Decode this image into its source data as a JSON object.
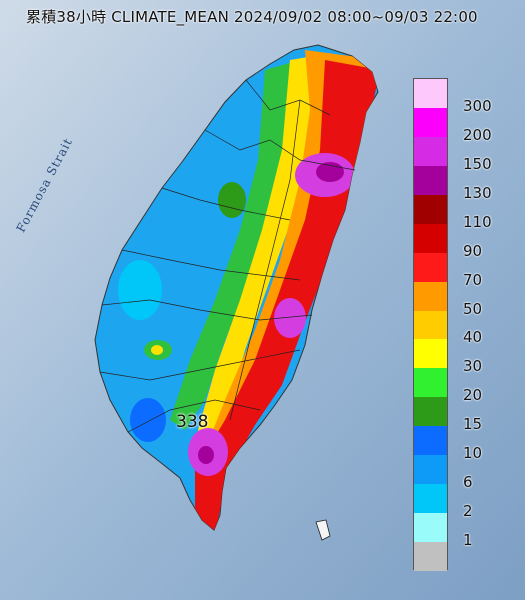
{
  "title": "累積38小時 CLIMATE_MEAN 2024/09/02 08:00~09/03 22:00",
  "strait_label": "Formosa Strait",
  "max_value": "338",
  "legend": {
    "colors": [
      "#fdc8fc",
      "#fb00fb",
      "#d62be4",
      "#a4009c",
      "#a00000",
      "#d40000",
      "#ff1a1a",
      "#ff9a00",
      "#ffcc00",
      "#ffff00",
      "#30f030",
      "#2d9b17",
      "#0c6cff",
      "#0d9bf7",
      "#00c7f8",
      "#9afbfb",
      "#c0c0c0"
    ],
    "labels": [
      "300",
      "200",
      "150",
      "130",
      "110",
      "90",
      "70",
      "50",
      "40",
      "30",
      "20",
      "15",
      "10",
      "6",
      "2",
      "1"
    ]
  },
  "colors": {
    "sea": "#8fb0cf",
    "land_low": "#1ea5f0",
    "land_green": "#30c040",
    "land_orange": "#ff9a00",
    "land_red": "#e81010",
    "land_magenta": "#d43ee0"
  }
}
